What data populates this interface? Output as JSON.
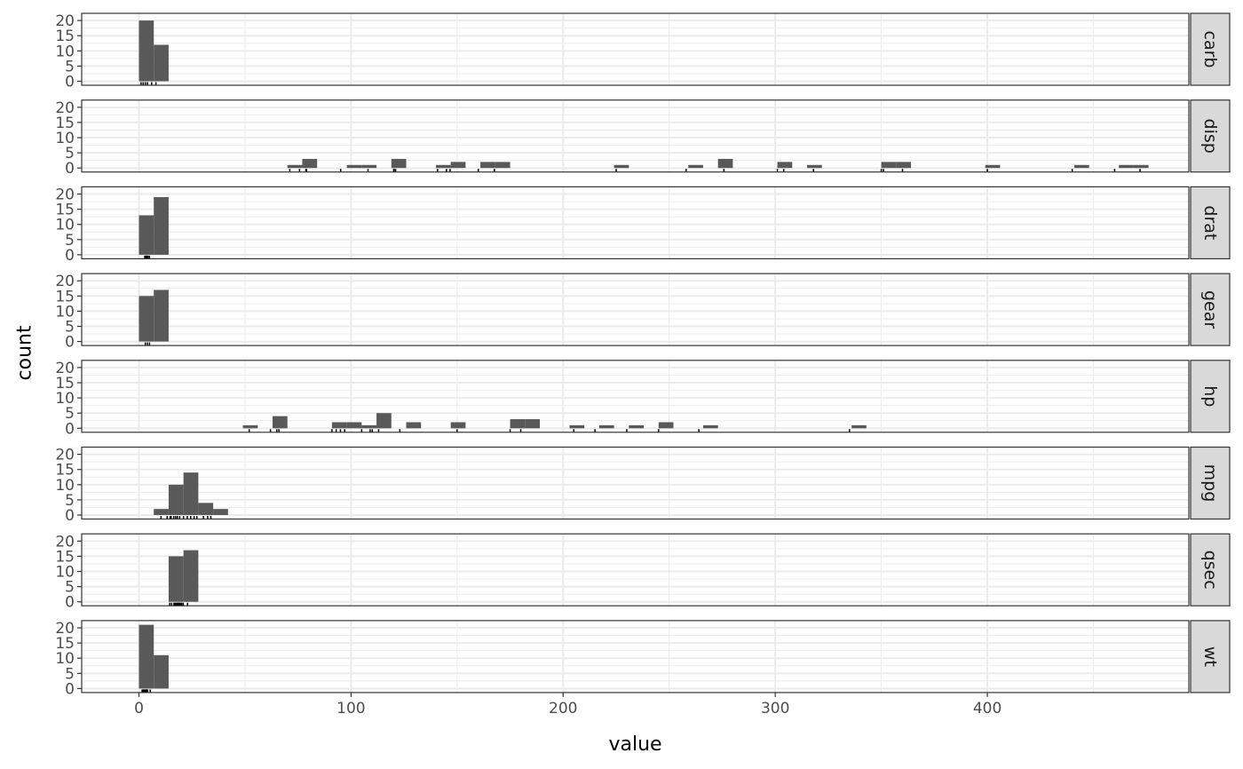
{
  "chart_data": {
    "type": "bar",
    "subtype": "faceted histogram with rug marks",
    "xlabel": "value",
    "ylabel": "count",
    "xlim": [
      -27,
      495
    ],
    "ylim": [
      0,
      21.5
    ],
    "x_ticks": [
      0,
      100,
      200,
      300,
      400
    ],
    "x_tick_labels": [
      "0",
      "100",
      "200",
      "300",
      "400"
    ],
    "y_ticks": [
      0,
      5,
      10,
      15,
      20
    ],
    "y_tick_labels": [
      "0",
      "5",
      "10",
      "15",
      "20"
    ],
    "grid": true,
    "facet_layout": "rows, strip labels on right",
    "bin_width": 7,
    "bar_color": "#595959",
    "panel_border_color": "#333333",
    "strip_fill": "#d9d9d9",
    "grid_color": "#ebebeb",
    "panels": [
      {
        "label": "carb",
        "bins": [
          {
            "x": 0,
            "count": 20
          },
          {
            "x": 7,
            "count": 12
          }
        ],
        "rug": [
          1,
          2,
          3,
          4,
          6,
          8
        ]
      },
      {
        "label": "disp",
        "bins": [
          {
            "x": 70,
            "count": 1
          },
          {
            "x": 77,
            "count": 3
          },
          {
            "x": 98,
            "count": 1
          },
          {
            "x": 105,
            "count": 1
          },
          {
            "x": 119,
            "count": 3
          },
          {
            "x": 140,
            "count": 1
          },
          {
            "x": 147,
            "count": 2
          },
          {
            "x": 161,
            "count": 2
          },
          {
            "x": 168,
            "count": 2
          },
          {
            "x": 224,
            "count": 1
          },
          {
            "x": 259,
            "count": 1
          },
          {
            "x": 273,
            "count": 3
          },
          {
            "x": 301,
            "count": 2
          },
          {
            "x": 315,
            "count": 1
          },
          {
            "x": 350,
            "count": 2
          },
          {
            "x": 357,
            "count": 2
          },
          {
            "x": 399,
            "count": 1
          },
          {
            "x": 441,
            "count": 1
          },
          {
            "x": 462,
            "count": 1
          },
          {
            "x": 469,
            "count": 1
          }
        ],
        "rug": [
          71.1,
          75.7,
          78.7,
          79,
          95.1,
          108,
          120.1,
          120.3,
          121,
          140.8,
          145,
          146.7,
          160,
          167.6,
          225,
          258,
          275.8,
          301,
          304,
          318,
          350,
          351,
          360,
          400,
          440,
          460,
          472
        ]
      },
      {
        "label": "drat",
        "bins": [
          {
            "x": 0,
            "count": 13
          },
          {
            "x": 7,
            "count": 19
          }
        ],
        "rug": [
          2.76,
          3.08,
          3.15,
          3.62,
          3.9,
          4.08,
          4.22,
          4.93
        ]
      },
      {
        "label": "gear",
        "bins": [
          {
            "x": 0,
            "count": 15
          },
          {
            "x": 7,
            "count": 17
          }
        ],
        "rug": [
          3,
          4,
          5
        ]
      },
      {
        "label": "hp",
        "bins": [
          {
            "x": 49,
            "count": 1
          },
          {
            "x": 63,
            "count": 4
          },
          {
            "x": 91,
            "count": 2
          },
          {
            "x": 98,
            "count": 2
          },
          {
            "x": 105,
            "count": 1
          },
          {
            "x": 112,
            "count": 5
          },
          {
            "x": 126,
            "count": 2
          },
          {
            "x": 147,
            "count": 2
          },
          {
            "x": 175,
            "count": 3
          },
          {
            "x": 182,
            "count": 3
          },
          {
            "x": 203,
            "count": 1
          },
          {
            "x": 217,
            "count": 1
          },
          {
            "x": 231,
            "count": 1
          },
          {
            "x": 245,
            "count": 2
          },
          {
            "x": 266,
            "count": 1
          },
          {
            "x": 336,
            "count": 1
          }
        ],
        "rug": [
          52,
          62,
          65,
          66,
          91,
          93,
          95,
          97,
          105,
          109,
          110,
          113,
          123,
          150,
          175,
          180,
          205,
          215,
          230,
          245,
          264,
          335
        ]
      },
      {
        "label": "mpg",
        "bins": [
          {
            "x": 7,
            "count": 2
          },
          {
            "x": 14,
            "count": 10
          },
          {
            "x": 21,
            "count": 14
          },
          {
            "x": 28,
            "count": 4
          },
          {
            "x": 35,
            "count": 2
          }
        ],
        "rug": [
          10.4,
          13.3,
          14.7,
          15.2,
          16.4,
          17.3,
          18.1,
          19.2,
          21,
          22.8,
          24.4,
          26,
          27.3,
          30.4,
          32.4,
          33.9
        ]
      },
      {
        "label": "qsec",
        "bins": [
          {
            "x": 14,
            "count": 15
          },
          {
            "x": 21,
            "count": 17
          }
        ],
        "rug": [
          14.5,
          15.4,
          16.5,
          17,
          17.4,
          17.8,
          18.3,
          18.6,
          18.9,
          19.4,
          20,
          20.2,
          20.9,
          22.9
        ]
      },
      {
        "label": "wt",
        "bins": [
          {
            "x": 0,
            "count": 21
          },
          {
            "x": 7,
            "count": 11
          }
        ],
        "rug": [
          1.5,
          1.9,
          2.3,
          2.8,
          3.2,
          3.4,
          3.6,
          4.1,
          5.3
        ]
      }
    ]
  }
}
